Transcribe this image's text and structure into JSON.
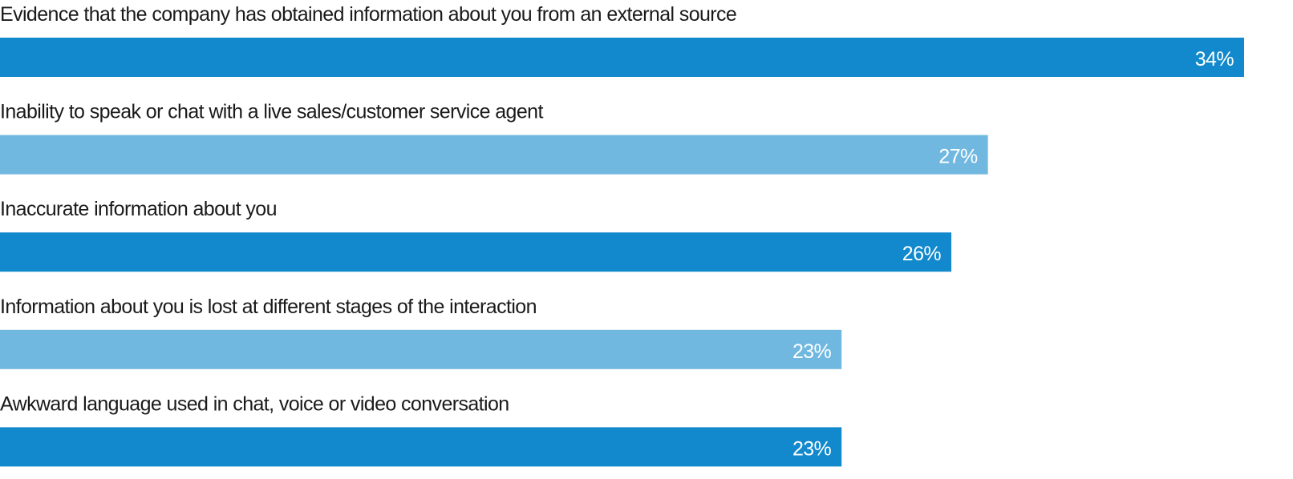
{
  "chart_data": {
    "type": "bar",
    "orientation": "horizontal",
    "categories": [
      "Evidence that the company has obtained information about you from an external source",
      "Inability to speak or chat with a live sales/customer service agent",
      "Inaccurate information about you",
      "Information about you is lost at different stages of the interaction",
      "Awkward language used in chat, voice or video conversation"
    ],
    "values": [
      34,
      27,
      26,
      23,
      23
    ],
    "value_labels": [
      "34%",
      "27%",
      "26%",
      "23%",
      "23%"
    ],
    "unit": "%",
    "xlim": [
      0,
      34
    ],
    "grid": false,
    "colors": [
      "#1289cc",
      "#70b8e0",
      "#1289cc",
      "#70b8e0",
      "#1289cc"
    ]
  }
}
